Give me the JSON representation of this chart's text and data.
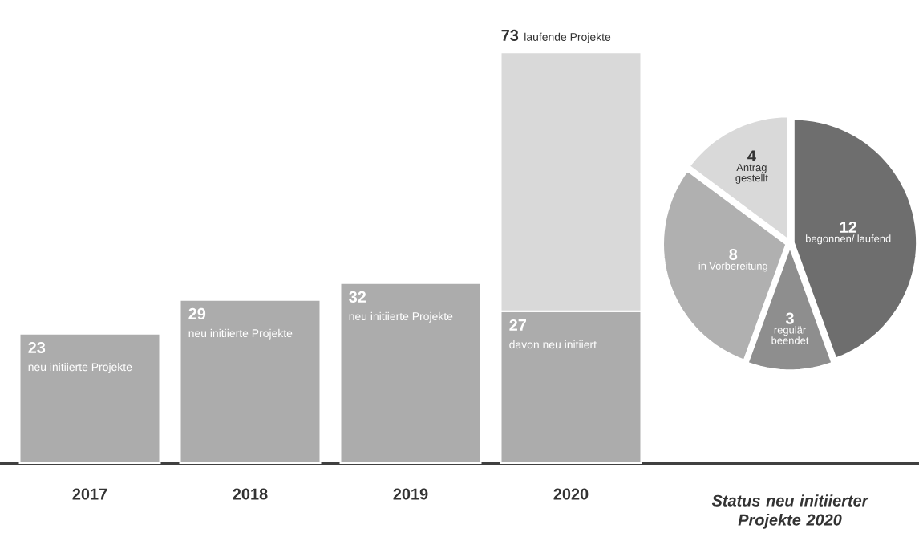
{
  "chart_data": [
    {
      "type": "bar",
      "categories": [
        "2017",
        "2018",
        "2019",
        "2020"
      ],
      "stacked": true,
      "series": [
        {
          "color": "#acacac",
          "values": [
            23,
            29,
            32,
            27
          ],
          "value_labels": [
            "23",
            "29",
            "32",
            "27"
          ]
        },
        {
          "color": "#d9d9d9",
          "values": [
            null,
            null,
            null,
            46
          ]
        }
      ],
      "totals": [
        null,
        null,
        null,
        "73"
      ],
      "annotations": [
        {
          "text": "neu initiierte Projekte",
          "x": "2017",
          "y": 23
        },
        {
          "text": "neu initiierte Projekte",
          "x": "2018",
          "y": 29
        },
        {
          "text": "neu initiierte Projekte",
          "x": "2019",
          "y": 32
        },
        {
          "text": "davon neu initiiert",
          "x": "2020",
          "y": 27
        },
        {
          "text": "laufende Projekte",
          "x": "2020",
          "y": 73
        }
      ]
    },
    {
      "type": "pie",
      "title": "Status neu initiierter Projekte 2020",
      "categories": [
        "begonnen/ laufend",
        "regulär beendet",
        "in Vorbereitung",
        "Antrag gestellt"
      ],
      "values": [
        12,
        3,
        8,
        4
      ],
      "colors": [
        "#6e6e6e",
        "#8e8e8e",
        "#b0b0b0",
        "#d9d9d9"
      ],
      "data_labels": true
    }
  ]
}
